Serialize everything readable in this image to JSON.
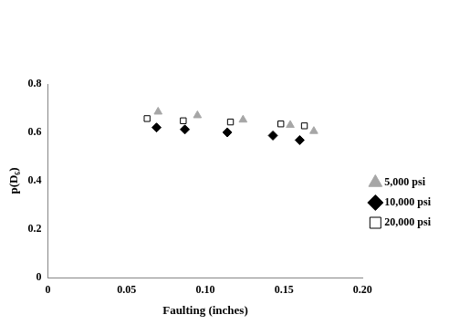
{
  "chart_data": {
    "type": "scatter",
    "x_label": "Faulting (inches)",
    "y_label": "p(D₆)",
    "xlim": [
      0,
      0.2
    ],
    "xticks": [
      0,
      0.05,
      0.1,
      0.15,
      0.2
    ],
    "ylim": [
      0,
      0.8
    ],
    "yticks": [
      0,
      0.2,
      0.4,
      0.6,
      0.8
    ],
    "grid": false,
    "legend": "right",
    "series": [
      {
        "name": "5,000 psi",
        "color": "#a6a6a6",
        "marker": "triangle",
        "x": [
          0.07,
          0.095,
          0.124,
          0.154,
          0.169
        ],
        "values": [
          0.685,
          0.67,
          0.652,
          0.63,
          0.605
        ]
      },
      {
        "name": "10,000 psi",
        "color": "#000000",
        "marker": "diamond",
        "x": [
          0.069,
          0.087,
          0.114,
          0.143,
          0.16
        ],
        "values": [
          0.62,
          0.612,
          0.6,
          0.587,
          0.568
        ]
      },
      {
        "name": "20,000 psi",
        "color": "#000000",
        "marker": "open_square",
        "x": [
          0.063,
          0.086,
          0.116,
          0.148,
          0.163
        ],
        "values": [
          0.657,
          0.648,
          0.643,
          0.635,
          0.627
        ]
      }
    ]
  }
}
